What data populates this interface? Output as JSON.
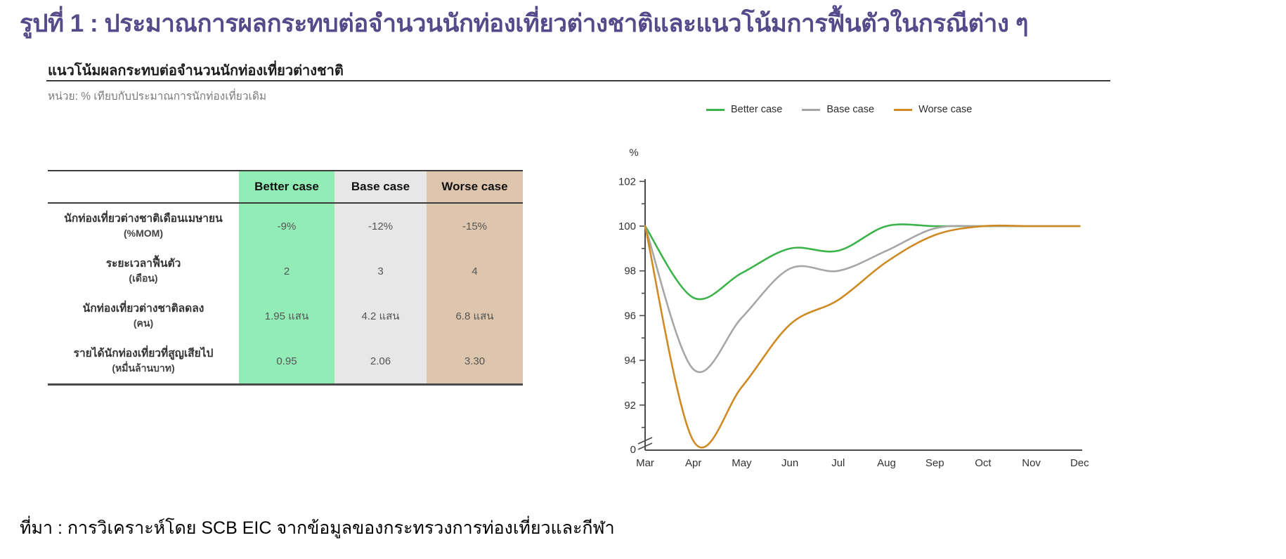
{
  "title": "รูปที่ 1 : ประมาณการผลกระทบต่อจำนวนนักท่องเที่ยวต่างชาติและแนวโน้มการฟื้นตัวในกรณีต่าง ๆ",
  "panel": {
    "heading": "แนวโน้มผลกระทบต่อจำนวนนักท่องเที่ยวต่างชาติ",
    "unit_note": "หน่วย: % เทียบกับประมาณการนักท่องเที่ยวเดิม"
  },
  "table": {
    "columns": [
      "Better case",
      "Base case",
      "Worse case"
    ],
    "column_colors": [
      "#92ecb5",
      "#e7e7e7",
      "#ddc6ad"
    ],
    "rows": [
      {
        "label": "นักท่องเที่ยวต่างชาติเดือนเมษายน",
        "unit": "(%MOM)",
        "values": [
          "-9%",
          "-12%",
          "-15%"
        ]
      },
      {
        "label": "ระยะเวลาฟื้นตัว",
        "unit": "(เดือน)",
        "values": [
          "2",
          "3",
          "4"
        ]
      },
      {
        "label": "นักท่องเที่ยวต่างชาติลดลง",
        "unit": "(คน)",
        "values": [
          "1.95 แสน",
          "4.2 แสน",
          "6.8 แสน"
        ]
      },
      {
        "label": "รายได้นักท่องเที่ยวที่สูญเสียไป",
        "unit": "(หมื่นล้านบาท)",
        "values": [
          "0.95",
          "2.06",
          "3.30"
        ]
      }
    ]
  },
  "chart_data": {
    "type": "line",
    "ylabel": "%",
    "categories": [
      "Mar",
      "Apr",
      "May",
      "Jun",
      "Jul",
      "Aug",
      "Sep",
      "Oct",
      "Nov",
      "Dec"
    ],
    "series": [
      {
        "name": "Better case",
        "color": "#3cb44b",
        "values": [
          100,
          96.8,
          97.9,
          99.0,
          98.9,
          100,
          100,
          100,
          100,
          100
        ]
      },
      {
        "name": "Base case",
        "color": "#a6a6a6",
        "values": [
          100,
          93.6,
          95.9,
          98.1,
          98.0,
          98.9,
          99.9,
          100,
          100,
          100
        ]
      },
      {
        "name": "Worse case",
        "color": "#cf8a24",
        "values": [
          100,
          90.4,
          92.8,
          95.6,
          96.7,
          98.4,
          99.6,
          100,
          100,
          100
        ]
      }
    ],
    "y_ticks": [
      102,
      100,
      98,
      96,
      94,
      92
    ],
    "y_minor_ticks": [
      101,
      99,
      97,
      95,
      93,
      91
    ],
    "y_axis_break": true,
    "y_axis_zero_label": "0",
    "ylim_shown": [
      92,
      102
    ],
    "grid": false,
    "legend_position": "top"
  },
  "footer": "ที่มา : การวิเคราะห์โดย SCB EIC จากข้อมูลของกระทรวงการท่องเที่ยวและกีฬา"
}
